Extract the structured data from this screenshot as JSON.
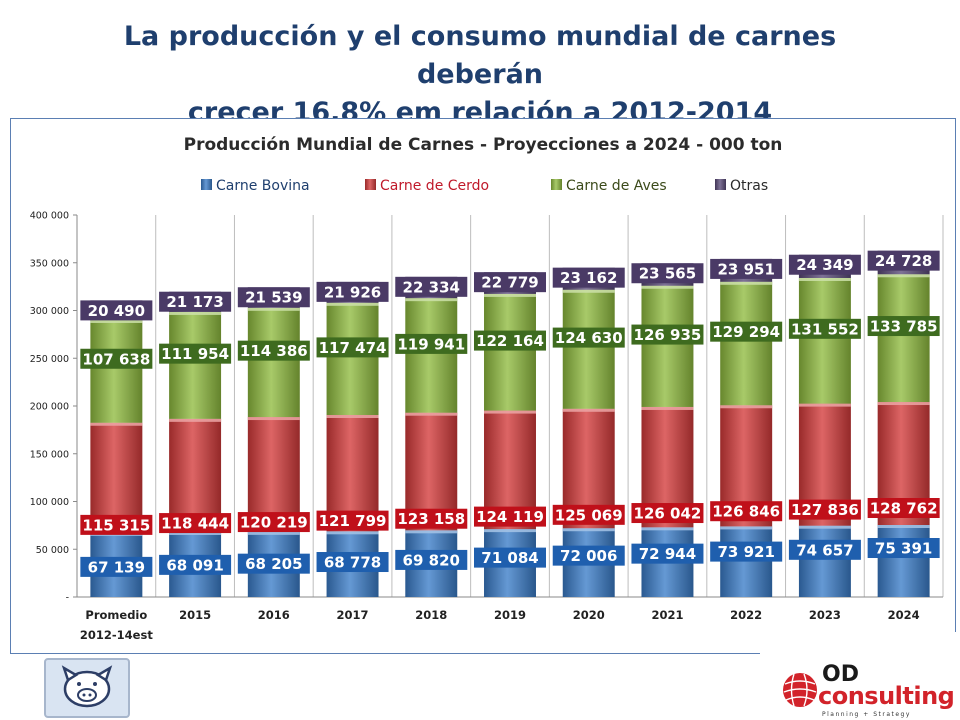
{
  "slide": {
    "title_line1": "La producción y el consumo mundial de carnes deberán",
    "title_line2": "crecer 16,8% em relación a 2012-2014"
  },
  "branding": {
    "od": "OD",
    "consulting": "consulting",
    "tagline": "Planning + Strategy"
  },
  "colors": {
    "bovina": "#3a7cc8",
    "cerdo": "#d43a3a",
    "aves": "#8fbb3f",
    "otras": "#5a4a78",
    "title": "#1f3f6e"
  },
  "chart_data": {
    "type": "bar",
    "stacked": true,
    "title": "Producción Mundial de Carnes - Proyecciones a 2024 - 000 ton",
    "categories": [
      "Promedio 2012-14est",
      "2015",
      "2016",
      "2017",
      "2018",
      "2019",
      "2020",
      "2021",
      "2022",
      "2023",
      "2024"
    ],
    "category_lines": [
      [
        "Promedio",
        "2012-14est"
      ],
      [
        "2015"
      ],
      [
        "2016"
      ],
      [
        "2017"
      ],
      [
        "2018"
      ],
      [
        "2019"
      ],
      [
        "2020"
      ],
      [
        "2021"
      ],
      [
        "2022"
      ],
      [
        "2023"
      ],
      [
        "2024"
      ]
    ],
    "series": [
      {
        "name": "Carne Bovina",
        "key": "bovina",
        "values": [
          67139,
          68091,
          68205,
          68778,
          69820,
          71084,
          72006,
          72944,
          73921,
          74657,
          75391
        ],
        "labels": [
          "67 139",
          "68 091",
          "68 205",
          "68 778",
          "69 820",
          "71 084",
          "72 006",
          "72 944",
          "73 921",
          "74 657",
          "75 391"
        ]
      },
      {
        "name": "Carne de Cerdo",
        "key": "cerdo",
        "values": [
          115315,
          118444,
          120219,
          121799,
          123158,
          124119,
          125069,
          126042,
          126846,
          127836,
          128762
        ],
        "labels": [
          "115 315",
          "118 444",
          "120 219",
          "121 799",
          "123 158",
          "124 119",
          "125 069",
          "126 042",
          "126 846",
          "127 836",
          "128 762"
        ]
      },
      {
        "name": "Carne de Aves",
        "key": "aves",
        "values": [
          107638,
          111954,
          114386,
          117474,
          119941,
          122164,
          124630,
          126935,
          129294,
          131552,
          133785
        ],
        "labels": [
          "107 638",
          "111 954",
          "114 386",
          "117 474",
          "119 941",
          "122 164",
          "124 630",
          "126 935",
          "129 294",
          "131 552",
          "133 785"
        ]
      },
      {
        "name": "Otras",
        "key": "otras",
        "values": [
          20490,
          21173,
          21539,
          21926,
          22334,
          22779,
          23162,
          23565,
          23951,
          24349,
          24728
        ],
        "labels": [
          "20 490",
          "21 173",
          "21 539",
          "21 926",
          "22 334",
          "22 779",
          "23 162",
          "23 565",
          "23 951",
          "24 349",
          "24 728"
        ]
      }
    ],
    "ylim": [
      0,
      400000
    ],
    "yticks": [
      0,
      50000,
      100000,
      150000,
      200000,
      250000,
      300000,
      350000,
      400000
    ],
    "ytick_labels": [
      "-",
      "50 000",
      "100 000",
      "150 000",
      "200 000",
      "250 000",
      "300 000",
      "350 000",
      "400 000"
    ],
    "legend": "top-center",
    "grid": "vertical-category"
  }
}
